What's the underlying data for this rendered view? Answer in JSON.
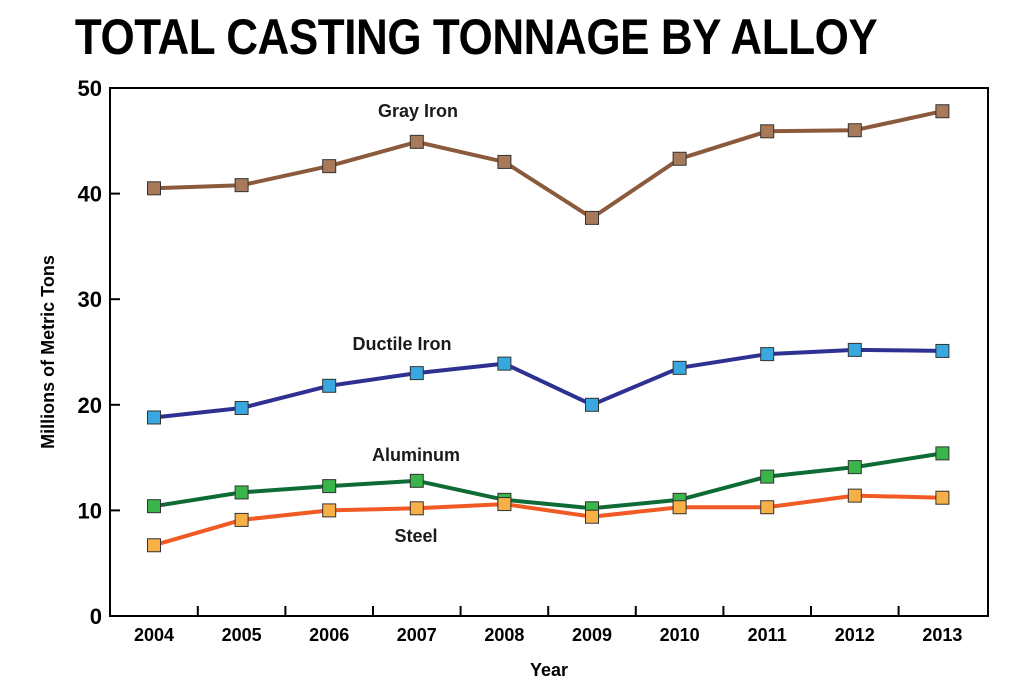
{
  "chart_data": {
    "type": "line",
    "title": "TOTAL CASTING TONNAGE BY ALLOY",
    "xlabel": "Year",
    "ylabel": "Millions of Metric Tons",
    "categories": [
      "2004",
      "2005",
      "2006",
      "2007",
      "2008",
      "2009",
      "2010",
      "2011",
      "2012",
      "2013"
    ],
    "ylim": [
      0,
      50
    ],
    "yticks": [
      "0",
      "10",
      "20",
      "30",
      "40",
      "50"
    ],
    "grid": false,
    "legend": "none (series labeled inline)",
    "series": [
      {
        "name": "Gray Iron",
        "line_color": "#8b5a3c",
        "marker_color": "#a87a5a",
        "values": [
          40.5,
          40.8,
          42.6,
          44.9,
          43.0,
          37.7,
          43.3,
          45.9,
          46.0,
          47.8
        ]
      },
      {
        "name": "Ductile Iron",
        "line_color": "#2e3192",
        "marker_color": "#3aa8e0",
        "values": [
          18.8,
          19.7,
          21.8,
          23.0,
          23.9,
          20.0,
          23.5,
          24.8,
          25.2,
          25.1
        ]
      },
      {
        "name": "Aluminum",
        "line_color": "#0f6b36",
        "marker_color": "#39b54a",
        "values": [
          10.4,
          11.7,
          12.3,
          12.8,
          11.0,
          10.2,
          11.0,
          13.2,
          14.1,
          15.4
        ]
      },
      {
        "name": "Steel",
        "line_color": "#f15a24",
        "marker_color": "#f7b046",
        "values": [
          6.7,
          9.1,
          10.0,
          10.2,
          10.6,
          9.4,
          10.3,
          10.3,
          11.4,
          11.2
        ]
      }
    ]
  }
}
